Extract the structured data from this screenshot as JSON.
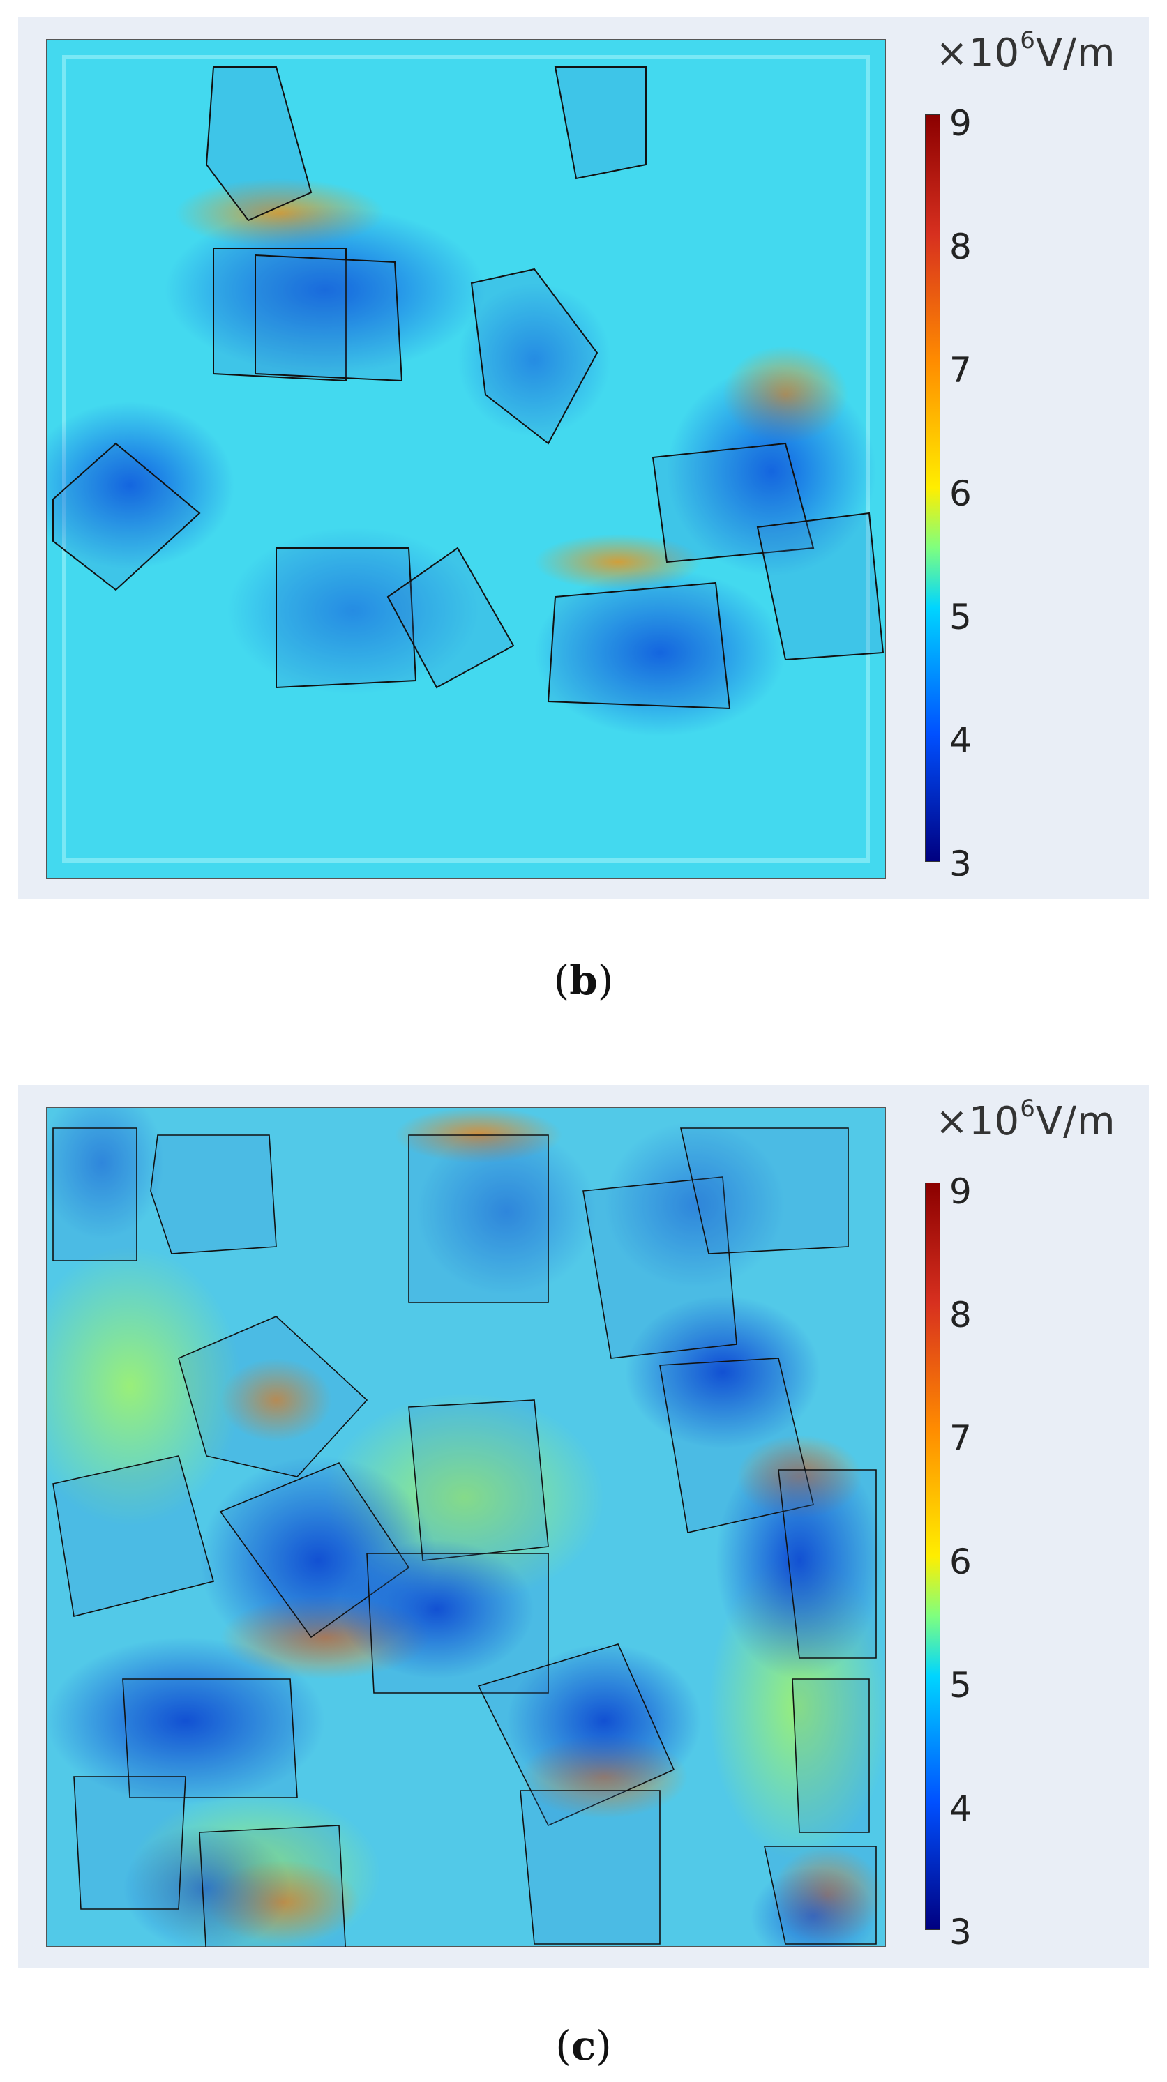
{
  "panels": [
    {
      "id": "b",
      "caption_letter": "b",
      "unit": "V/m",
      "unit_prefix": "×10",
      "unit_exponent": "6",
      "colorbar_ticks": [
        "9",
        "8",
        "7",
        "6",
        "5",
        "4",
        "3"
      ]
    },
    {
      "id": "c",
      "caption_letter": "c",
      "unit": "V/m",
      "unit_prefix": "×10",
      "unit_exponent": "6",
      "colorbar_ticks": [
        "9",
        "8",
        "7",
        "6",
        "5",
        "4",
        "3"
      ]
    }
  ],
  "colors": {
    "background_field": "#42ddf0",
    "colormap": [
      "#8b0000",
      "#d7301f",
      "#ff8c00",
      "#ffee00",
      "#7fff7f",
      "#00d5ff",
      "#0050ff",
      "#000080"
    ],
    "wireframe": "#111111",
    "panel_bg": "#e9eef6"
  }
}
